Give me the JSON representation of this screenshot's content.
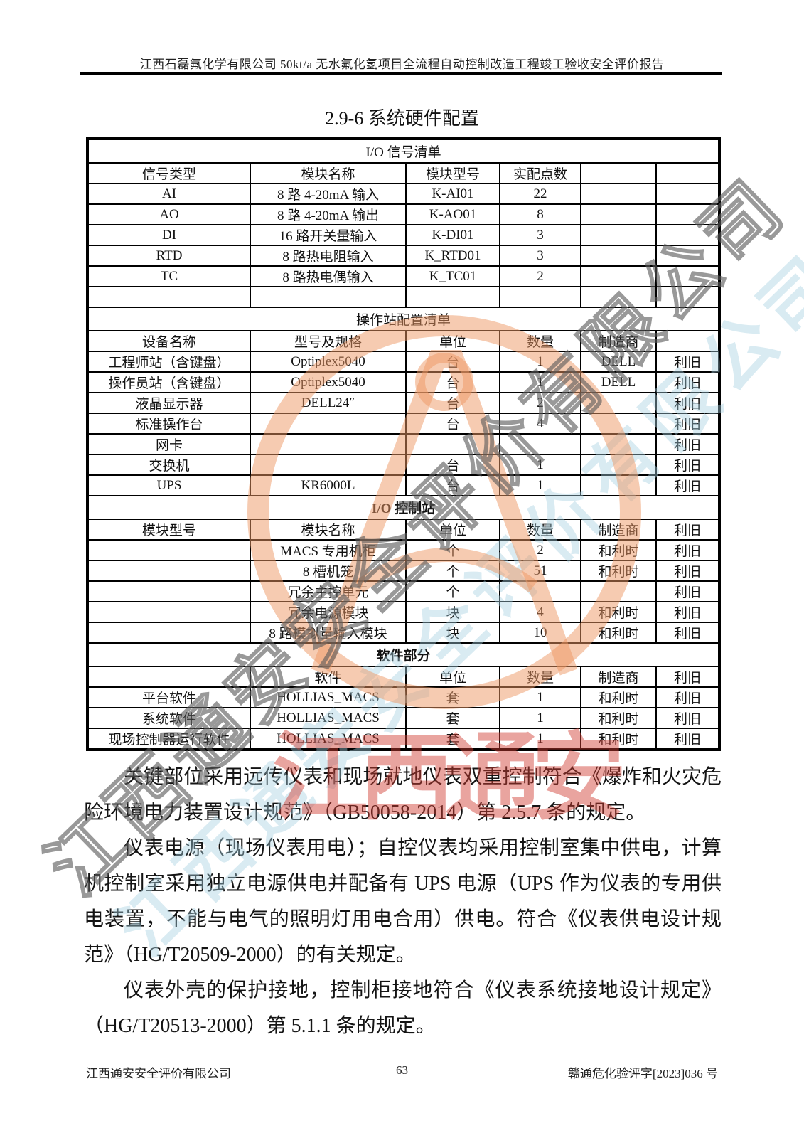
{
  "header": {
    "report_title": "江西石磊氟化学有限公司 50kt/a 无水氟化氢项目全流程自动控制改造工程竣工验收安全评价报告"
  },
  "section": {
    "title": "2.9-6 系统硬件配置"
  },
  "table": {
    "sections": [
      {
        "title": "I/O 信号清单",
        "emphasis": false,
        "columns": [
          "信号类型",
          "模块名称",
          "模块型号",
          "实配点数",
          "",
          ""
        ],
        "rows": [
          [
            "AI",
            "8 路 4-20mA 输入",
            "K-AI01",
            "22",
            "",
            ""
          ],
          [
            "AO",
            "8 路 4-20mA 输出",
            "K-AO01",
            "8",
            "",
            ""
          ],
          [
            "DI",
            "16 路开关量输入",
            "K-DI01",
            "3",
            "",
            ""
          ],
          [
            "RTD",
            "8 路热电阻输入",
            "K_RTD01",
            "3",
            "",
            ""
          ],
          [
            "TC",
            "8 路热电偶输入",
            "K_TC01",
            "2",
            "",
            ""
          ],
          [
            "",
            "",
            "",
            "",
            "",
            ""
          ]
        ]
      },
      {
        "title": "操作站配置清单",
        "emphasis": false,
        "columns": [
          "设备名称",
          "型号及规格",
          "单位",
          "数量",
          "制造商",
          ""
        ],
        "rows": [
          [
            "工程师站（含键盘）",
            "Optiplex5040",
            "台",
            "1",
            "DELL",
            "利旧"
          ],
          [
            "操作员站（含键盘）",
            "Optiplex5040",
            "台",
            "1",
            "DELL",
            "利旧"
          ],
          [
            "液晶显示器",
            "DELL24″",
            "台",
            "2",
            "",
            "利旧"
          ],
          [
            "标准操作台",
            "",
            "台",
            "4",
            "",
            "利旧"
          ],
          [
            "网卡",
            "",
            "",
            "",
            "",
            "利旧"
          ],
          [
            "交换机",
            "",
            "台",
            "1",
            "",
            "利旧"
          ],
          [
            "UPS",
            "KR6000L",
            "台",
            "1",
            "",
            "利旧"
          ]
        ]
      },
      {
        "title": "I/O 控制站",
        "emphasis": true,
        "columns": [
          "模块型号",
          "模块名称",
          "单位",
          "数量",
          "制造商",
          "利旧"
        ],
        "rows": [
          [
            "",
            "MACS 专用机柜",
            "个",
            "2",
            "和利时",
            "利旧"
          ],
          [
            "",
            "8 槽机笼",
            "个",
            "51",
            "和利时",
            "利旧"
          ],
          [
            "",
            "冗余主控单元",
            "个",
            "",
            "",
            "利旧"
          ],
          [
            "",
            "冗余电源模块",
            "块",
            "4",
            "和利时",
            "利旧"
          ],
          [
            "",
            "8 路模拟量输入模块",
            "块",
            "10",
            "和利时",
            "利旧"
          ]
        ]
      },
      {
        "title": "软件部分",
        "emphasis": true,
        "columns": [
          "",
          "软件",
          "单位",
          "数量",
          "制造商",
          "利旧"
        ],
        "rows": [
          [
            "平台软件",
            "HOLLIAS_MACS",
            "套",
            "1",
            "和利时",
            "利旧"
          ],
          [
            "系统软件",
            "HOLLIAS_MACS",
            "套",
            "1",
            "和利时",
            "利旧"
          ],
          [
            "现场控制器运行软件",
            "HOLLIAS_MACS",
            "套",
            "1",
            "和利时",
            "利旧"
          ]
        ]
      }
    ]
  },
  "paragraphs": [
    "关键部位采用远传仪表和现场就地仪表双重控制符合《爆炸和火灾危险环境电力装置设计规范》（GB50058-2014）第 2.5.7 条的规定。",
    "仪表电源（现场仪表用电）；自控仪表均采用控制室集中供电，计算机控制室采用独立电源供电并配备有 UPS 电源（UPS 作为仪表的专用供电装置，不能与电气的照明灯用电合用）供电。符合《仪表供电设计规范》（HG/T20509-2000）的有关规定。",
    "仪表外壳的保护接地，控制柜接地符合《仪表系统接地设计规定》（HG/T20513-2000）第 5.1.1 条的规定。"
  ],
  "footer": {
    "company": "江西通安安全评价有限公司",
    "page_number": "63",
    "doc_number": "赣通危化验评字[2023]036 号"
  },
  "watermark": {
    "diagonal_text": "江西通安安全评价有限公司",
    "blue_text": "江西通安安全评价有限公司",
    "red_text": "江西通安",
    "stamp_color": "#EE9763",
    "red_color": "#D03E34",
    "gray_color": "#5A5A5A",
    "blue_color": "#A5D0E0"
  }
}
